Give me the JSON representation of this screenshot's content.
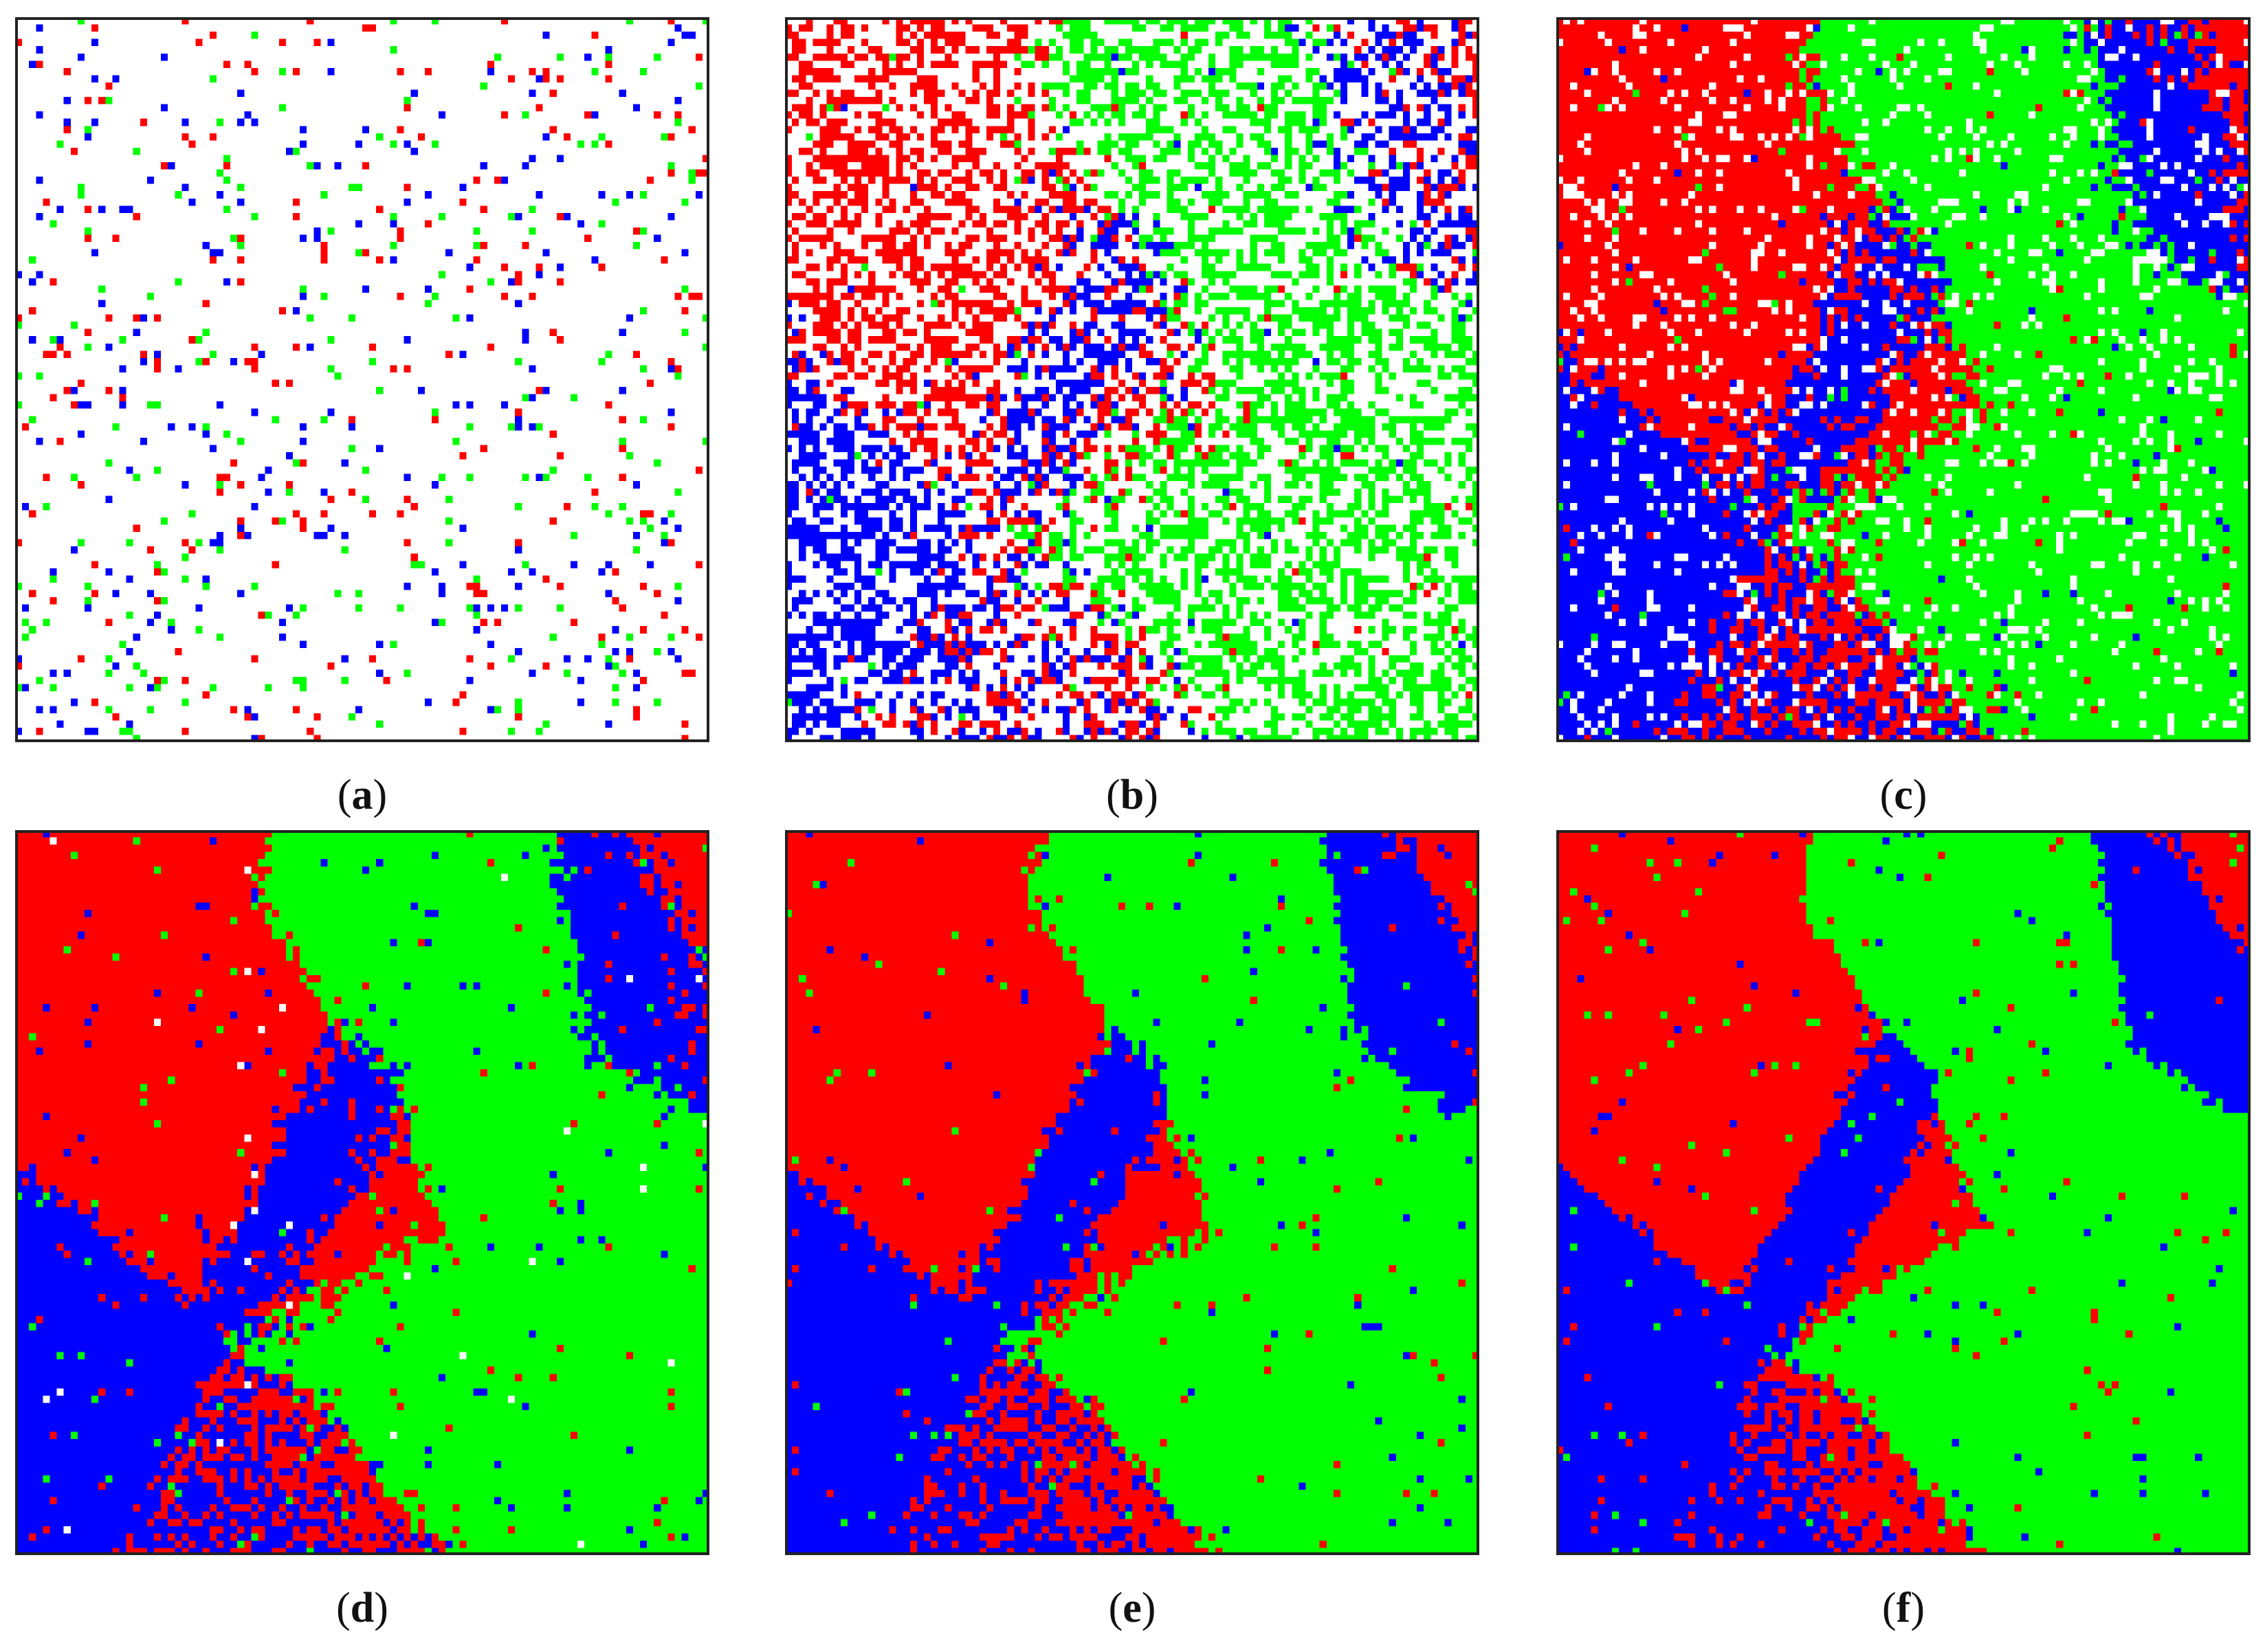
{
  "colors": {
    "background": "#ffffff",
    "red": "#ff0000",
    "green": "#00ff00",
    "blue": "#0000ff",
    "frame": "#222222"
  },
  "grid_size": 100,
  "panels": [
    {
      "id": "a",
      "caption_open": "(",
      "caption_letter": "a",
      "caption_close": ")",
      "occupied_fraction": 0.08,
      "domain_scale": 0
    },
    {
      "id": "b",
      "caption_open": "(",
      "caption_letter": "b",
      "caption_close": ")",
      "occupied_fraction": 0.5,
      "domain_scale": 5
    },
    {
      "id": "c",
      "caption_open": "(",
      "caption_letter": "c",
      "caption_close": ")",
      "occupied_fraction": 0.88,
      "domain_scale": 8
    },
    {
      "id": "d",
      "caption_open": "(",
      "caption_letter": "d",
      "caption_close": ")",
      "occupied_fraction": 0.995,
      "domain_scale": 10
    },
    {
      "id": "e",
      "caption_open": "(",
      "caption_letter": "e",
      "caption_close": ")",
      "occupied_fraction": 1.0,
      "domain_scale": 11
    },
    {
      "id": "f",
      "caption_open": "(",
      "caption_letter": "f",
      "caption_close": ")",
      "occupied_fraction": 1.0,
      "domain_scale": 12
    }
  ]
}
